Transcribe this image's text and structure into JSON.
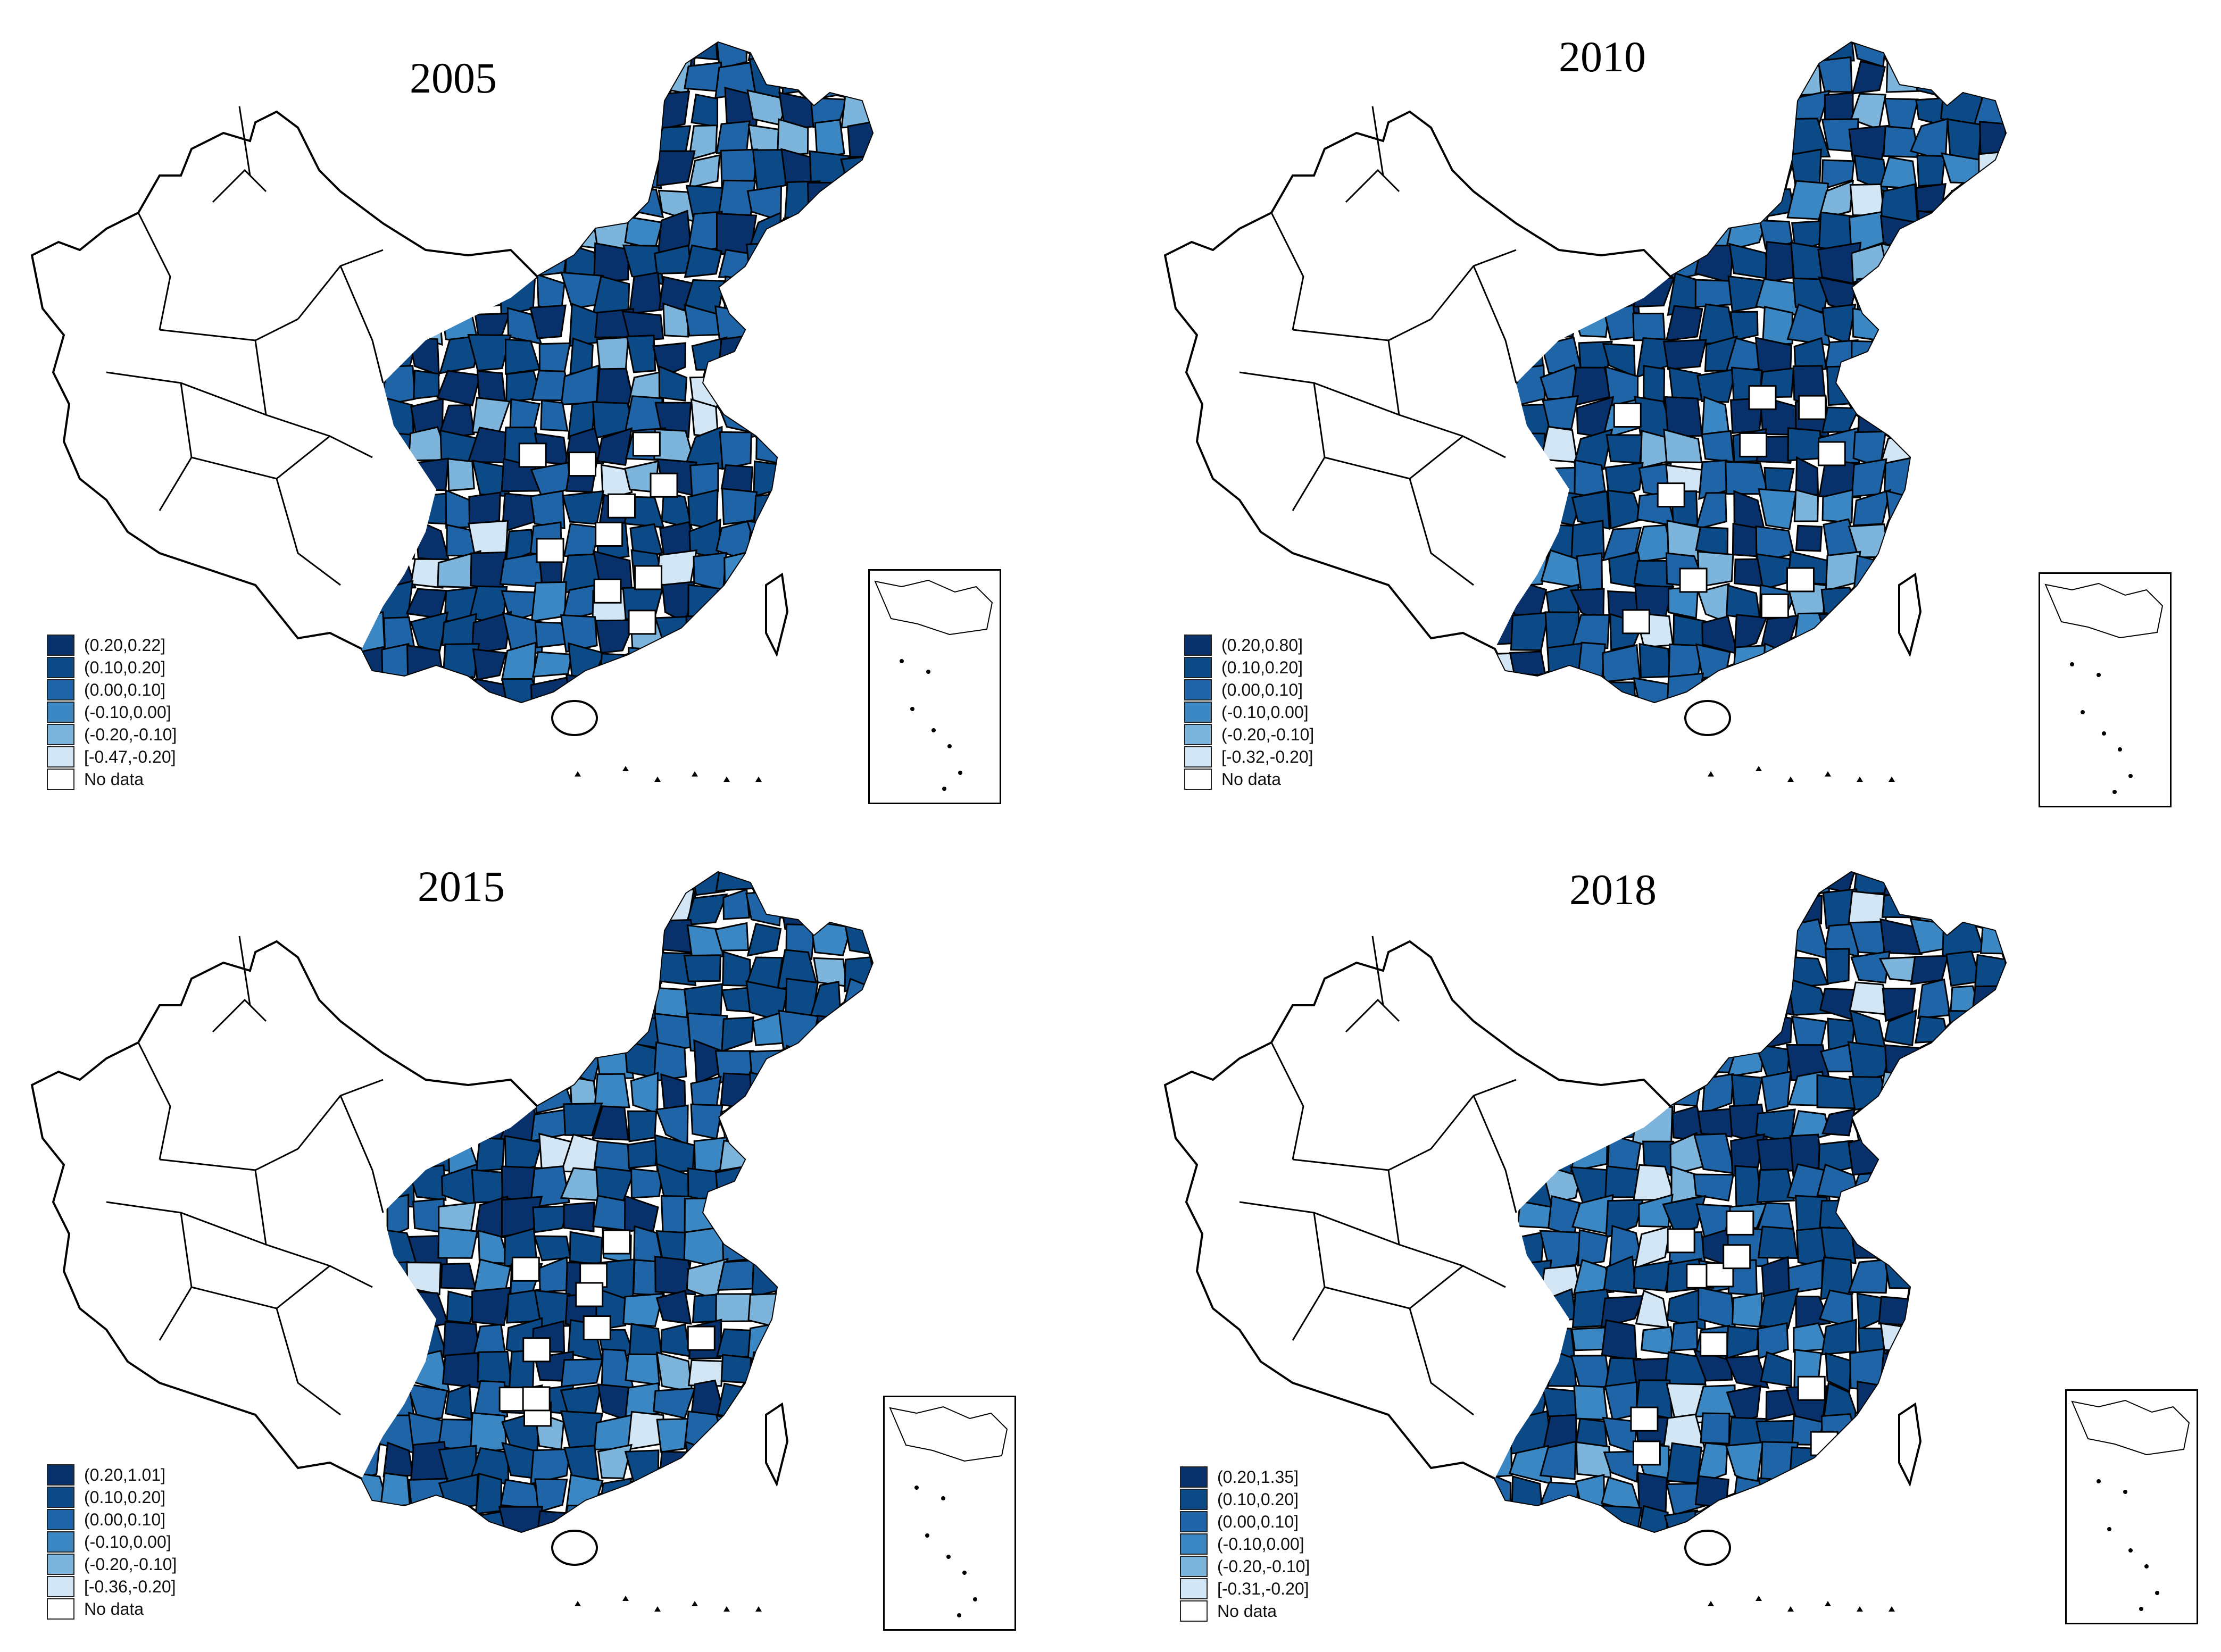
{
  "colors": {
    "c1": "#08306b",
    "c2": "#0b4a86",
    "c3": "#1f64a6",
    "c4": "#3b87c3",
    "c5": "#7db4dc",
    "c6": "#d2e6f6",
    "nodata": "#ffffff",
    "outline": "#000000"
  },
  "panels": [
    {
      "title": "2005",
      "legend": [
        {
          "label": "(0.20,0.22]",
          "color_key": "c1"
        },
        {
          "label": "(0.10,0.20]",
          "color_key": "c2"
        },
        {
          "label": "(0.00,0.10]",
          "color_key": "c3"
        },
        {
          "label": "(-0.10,0.00]",
          "color_key": "c4"
        },
        {
          "label": "(-0.20,-0.10]",
          "color_key": "c5"
        },
        {
          "label": "[-0.47,-0.20]",
          "color_key": "c6"
        },
        {
          "label": "No data",
          "color_key": "nodata"
        }
      ]
    },
    {
      "title": "2010",
      "legend": [
        {
          "label": "(0.20,0.80]",
          "color_key": "c1"
        },
        {
          "label": "(0.10,0.20]",
          "color_key": "c2"
        },
        {
          "label": "(0.00,0.10]",
          "color_key": "c3"
        },
        {
          "label": "(-0.10,0.00]",
          "color_key": "c4"
        },
        {
          "label": "(-0.20,-0.10]",
          "color_key": "c5"
        },
        {
          "label": "[-0.32,-0.20]",
          "color_key": "c6"
        },
        {
          "label": "No data",
          "color_key": "nodata"
        }
      ]
    },
    {
      "title": "2015",
      "legend": [
        {
          "label": "(0.20,1.01]",
          "color_key": "c1"
        },
        {
          "label": "(0.10,0.20]",
          "color_key": "c2"
        },
        {
          "label": "(0.00,0.10]",
          "color_key": "c3"
        },
        {
          "label": "(-0.10,0.00]",
          "color_key": "c4"
        },
        {
          "label": "(-0.20,-0.10]",
          "color_key": "c5"
        },
        {
          "label": "[-0.36,-0.20]",
          "color_key": "c6"
        },
        {
          "label": "No data",
          "color_key": "nodata"
        }
      ]
    },
    {
      "title": "2018",
      "legend": [
        {
          "label": "(0.20,1.35]",
          "color_key": "c1"
        },
        {
          "label": "(0.10,0.20]",
          "color_key": "c2"
        },
        {
          "label": "(0.00,0.10]",
          "color_key": "c3"
        },
        {
          "label": "(-0.10,0.00]",
          "color_key": "c4"
        },
        {
          "label": "(-0.20,-0.10]",
          "color_key": "c5"
        },
        {
          "label": "[-0.31,-0.20]",
          "color_key": "c6"
        },
        {
          "label": "No data",
          "color_key": "nodata"
        }
      ]
    }
  ]
}
